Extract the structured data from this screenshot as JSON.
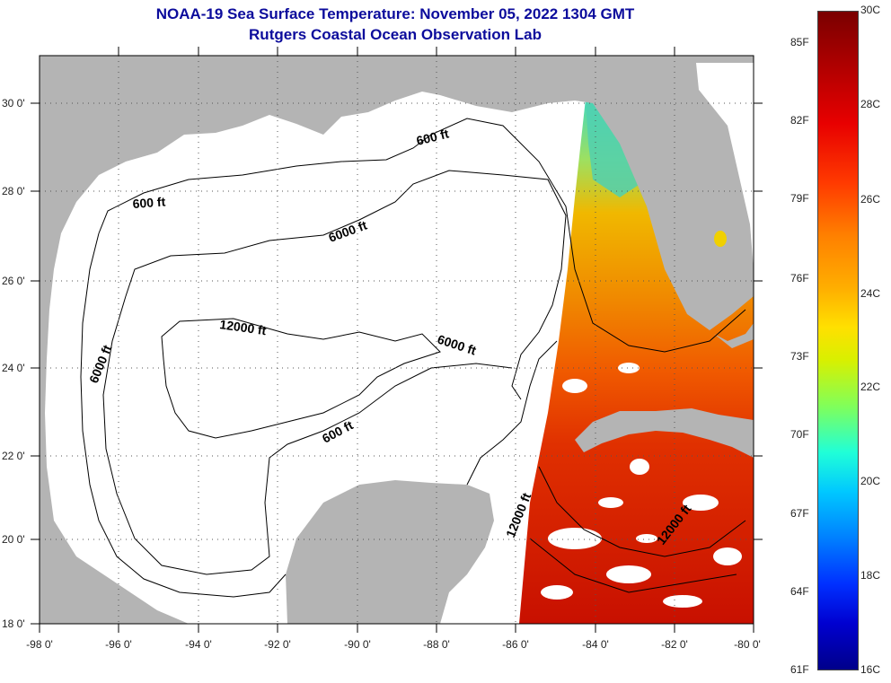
{
  "header": {
    "title": "NOAA-19 Sea Surface Temperature:  November 05, 2022 1304 GMT",
    "subtitle": "Rutgers Coastal Ocean Observation Lab"
  },
  "map": {
    "latitude_labels": [
      "30 0'",
      "28 0'",
      "26 0'",
      "24 0'",
      "22 0'",
      "20 0'",
      "18 0'"
    ],
    "longitude_labels": [
      "-98 0'",
      "-96 0'",
      "-94 0'",
      "-92 0'",
      "-90 0'",
      "-88 0'",
      "-86 0'",
      "-84 0'",
      "-82 0'",
      "-80 0'"
    ],
    "contour_labels": [
      "600 ft",
      "600 ft",
      "6000 ft",
      "6000 ft",
      "6000 ft",
      "12000 ft",
      "600 ft",
      "12000 ft",
      "12000 ft"
    ]
  },
  "colorbar": {
    "fahrenheit_labels": [
      "85F",
      "82F",
      "79F",
      "76F",
      "73F",
      "70F",
      "67F",
      "64F",
      "61F"
    ],
    "celsius_labels": [
      "30C",
      "28C",
      "26C",
      "24C",
      "22C",
      "20C",
      "18C",
      "16C"
    ]
  },
  "colors": {
    "title": "#0c0c9c",
    "land": "#b4b4b4",
    "no_data": "#ffffff",
    "warm": "#e02000",
    "cool": "#40d0c0"
  }
}
